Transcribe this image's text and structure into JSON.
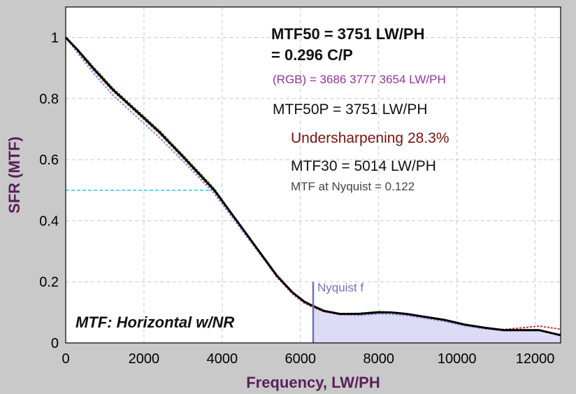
{
  "chart_data": {
    "type": "line",
    "title": "MTF: Horizontal w/NR",
    "xlabel": "Frequency, LW/PH",
    "ylabel": "SFR (MTF)",
    "xlim": [
      0,
      12650
    ],
    "ylim": [
      0,
      1.1
    ],
    "x_ticks": [
      "0",
      "2000",
      "4000",
      "6000",
      "8000",
      "10000",
      "12000"
    ],
    "x_tick_values": [
      0,
      2000,
      4000,
      6000,
      8000,
      10000,
      12000
    ],
    "y_ticks": [
      "0",
      "0.2",
      "0.4",
      "0.6",
      "0.8",
      "1"
    ],
    "y_tick_values": [
      0,
      0.2,
      0.4,
      0.6,
      0.8,
      1.0
    ],
    "grid": true,
    "nyquist": {
      "x": 6325,
      "label": "Nyquist f"
    },
    "mtf50_marker": {
      "x": 3751,
      "y": 0.5
    },
    "series": [
      {
        "name": "Luminance",
        "color": "#000000",
        "x": [
          0,
          300,
          700,
          1200,
          1800,
          2400,
          3000,
          3400,
          3800,
          4200,
          4600,
          5000,
          5400,
          5800,
          6100,
          6300,
          6600,
          7000,
          7500,
          8000,
          8300,
          8700,
          9200,
          9700,
          10200,
          10700,
          11200,
          11700,
          12100,
          12650
        ],
        "y": [
          1.0,
          0.96,
          0.9,
          0.83,
          0.76,
          0.69,
          0.61,
          0.555,
          0.5,
          0.43,
          0.36,
          0.29,
          0.22,
          0.165,
          0.135,
          0.122,
          0.105,
          0.095,
          0.095,
          0.1,
          0.1,
          0.095,
          0.085,
          0.075,
          0.06,
          0.05,
          0.042,
          0.042,
          0.042,
          0.025
        ]
      },
      {
        "name": "Red",
        "color": "#cc3333",
        "x": [
          0,
          300,
          700,
          1200,
          1800,
          2400,
          3000,
          3400,
          3800,
          4200,
          4600,
          5000,
          5400,
          5800,
          6100,
          6300,
          6600,
          7000,
          7500,
          8000,
          8300,
          8700,
          9200,
          9700,
          10200,
          10700,
          11200,
          11700,
          12100,
          12650
        ],
        "y": [
          1.0,
          0.955,
          0.895,
          0.825,
          0.755,
          0.685,
          0.605,
          0.55,
          0.495,
          0.425,
          0.355,
          0.285,
          0.215,
          0.16,
          0.13,
          0.118,
          0.102,
          0.094,
          0.096,
          0.102,
          0.1,
          0.094,
          0.084,
          0.073,
          0.058,
          0.048,
          0.044,
          0.05,
          0.055,
          0.045
        ]
      },
      {
        "name": "Green",
        "color": "#2a9a2a",
        "x": [
          0,
          300,
          700,
          1200,
          1800,
          2400,
          3000,
          3400,
          3800,
          4200,
          4600,
          5000,
          5400,
          5800,
          6100,
          6300,
          6600,
          7000,
          7500,
          8000,
          8300,
          8700,
          9200,
          9700,
          10200,
          10700,
          11200,
          11700,
          12100,
          12650
        ],
        "y": [
          1.0,
          0.962,
          0.905,
          0.835,
          0.765,
          0.695,
          0.615,
          0.56,
          0.505,
          0.432,
          0.362,
          0.292,
          0.222,
          0.166,
          0.136,
          0.124,
          0.106,
          0.096,
          0.097,
          0.103,
          0.101,
          0.096,
          0.086,
          0.074,
          0.06,
          0.05,
          0.043,
          0.043,
          0.042,
          0.026
        ]
      },
      {
        "name": "Blue",
        "color": "#8a8ae0",
        "x": [
          0,
          300,
          700,
          1200,
          1800,
          2400,
          3000,
          3400,
          3800,
          4200,
          4600,
          5000,
          5400,
          5800,
          6100,
          6300,
          6600,
          7000,
          7500,
          8000,
          8300,
          8700,
          9200,
          9700,
          10200,
          10700,
          11200,
          11700,
          12100,
          12650
        ],
        "y": [
          1.0,
          0.95,
          0.885,
          0.812,
          0.742,
          0.672,
          0.595,
          0.542,
          0.488,
          0.42,
          0.352,
          0.285,
          0.218,
          0.163,
          0.133,
          0.12,
          0.104,
          0.092,
          0.09,
          0.095,
          0.094,
          0.09,
          0.08,
          0.07,
          0.056,
          0.046,
          0.04,
          0.04,
          0.04,
          0.028
        ]
      }
    ],
    "annotations": {
      "mtf50_line1": "MTF50 = 3751 LW/PH",
      "mtf50_line2": "= 0.296 C/P",
      "rgb": "(RGB) = 3686  3777  3654 LW/PH",
      "mtf50p": "MTF50P = 3751 LW/PH",
      "undersharpening": "Undersharpening 28.3%",
      "mtf30": "MTF30 = 5014 LW/PH",
      "nyquist_mtf": "MTF at Nyquist = 0.122"
    },
    "colors": {
      "background": "#c9c9c9",
      "plot_bg": "#ffffff",
      "grid": "#c8c8c8",
      "axis_title": "#5a1f5a",
      "nyquist": "#7070c0",
      "nyquist_fill": "#dcdcf6",
      "mtf50_marker": "#22ccdd",
      "rgb_text": "#993399",
      "undersharpening_text": "#7a1010",
      "nyquist_mtf_text": "#444444"
    }
  }
}
